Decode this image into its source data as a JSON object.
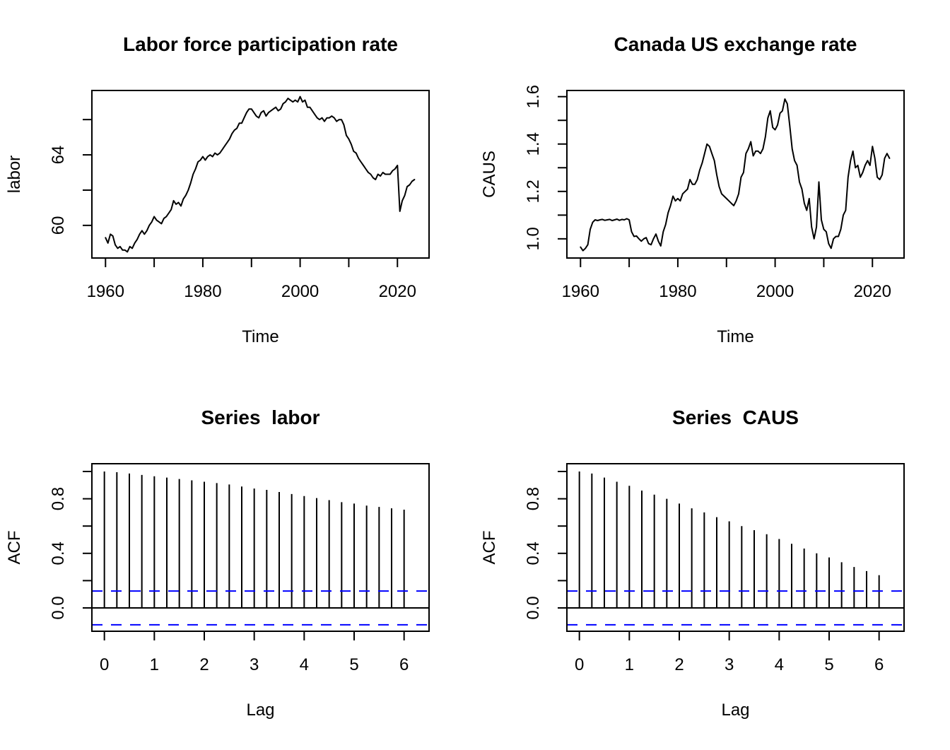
{
  "figure": {
    "background": "#FFFFFF",
    "line_color": "#000000",
    "conf_band_color": "#0000FF",
    "axis_color": "#000000"
  },
  "chart_data": [
    {
      "id": "labor-timeseries",
      "type": "line",
      "title": "Labor force participation rate",
      "xlabel": "Time",
      "ylabel": "labor",
      "grid": false,
      "legend": "none",
      "xlim": [
        1957.2,
        2026.5
      ],
      "ylim": [
        58.15,
        67.65
      ],
      "xticks": [
        1960,
        1970,
        1980,
        1990,
        2000,
        2010,
        2020
      ],
      "xtick_labels": [
        "1960",
        "",
        "1980",
        "",
        "2000",
        "",
        "2020"
      ],
      "yticks": [
        60,
        62,
        64,
        66
      ],
      "ytick_labels": [
        "60",
        "",
        "64",
        ""
      ],
      "x_start": 1960,
      "x_step": 0.5,
      "y": [
        59.3,
        59.0,
        59.5,
        59.4,
        58.9,
        58.7,
        58.8,
        58.6,
        58.6,
        58.5,
        58.8,
        58.7,
        59.0,
        59.2,
        59.5,
        59.7,
        59.5,
        59.7,
        60.0,
        60.2,
        60.5,
        60.3,
        60.2,
        60.1,
        60.4,
        60.5,
        60.7,
        60.9,
        61.4,
        61.2,
        61.3,
        61.1,
        61.5,
        61.7,
        62.0,
        62.4,
        62.9,
        63.2,
        63.6,
        63.7,
        63.9,
        63.7,
        63.9,
        64.0,
        63.9,
        64.1,
        64.0,
        64.1,
        64.3,
        64.5,
        64.7,
        64.9,
        65.2,
        65.4,
        65.5,
        65.8,
        65.8,
        66.1,
        66.4,
        66.6,
        66.6,
        66.4,
        66.2,
        66.1,
        66.4,
        66.5,
        66.2,
        66.4,
        66.5,
        66.6,
        66.7,
        66.5,
        66.6,
        66.9,
        67.0,
        67.2,
        67.1,
        67.0,
        67.1,
        67.0,
        67.3,
        67.0,
        67.1,
        66.7,
        66.7,
        66.5,
        66.3,
        66.1,
        66.0,
        66.1,
        65.9,
        66.1,
        66.1,
        66.2,
        66.1,
        65.9,
        66.0,
        66.0,
        65.7,
        65.1,
        64.9,
        64.6,
        64.2,
        64.1,
        63.8,
        63.6,
        63.4,
        63.2,
        63.0,
        62.9,
        62.7,
        62.6,
        62.9,
        62.8,
        63.0,
        62.9,
        62.9,
        62.9,
        63.1,
        63.2,
        63.4,
        60.8,
        61.4,
        61.7,
        62.2,
        62.3,
        62.5,
        62.6
      ]
    },
    {
      "id": "caus-timeseries",
      "type": "line",
      "title": "Canada US exchange rate",
      "xlabel": "Time",
      "ylabel": "CAUS",
      "grid": false,
      "legend": "none",
      "xlim": [
        1957.2,
        2026.5
      ],
      "ylim": [
        0.919,
        1.626
      ],
      "xticks": [
        1960,
        1970,
        1980,
        1990,
        2000,
        2010,
        2020
      ],
      "xtick_labels": [
        "1960",
        "",
        "1980",
        "",
        "2000",
        "",
        "2020"
      ],
      "yticks": [
        1.0,
        1.1,
        1.2,
        1.3,
        1.4,
        1.5,
        1.6
      ],
      "ytick_labels": [
        "1.0",
        "",
        "1.2",
        "",
        "1.4",
        "",
        "1.6"
      ],
      "x_start": 1960,
      "x_step": 0.5,
      "y": [
        0.965,
        0.95,
        0.96,
        0.975,
        1.04,
        1.07,
        1.08,
        1.077,
        1.08,
        1.082,
        1.078,
        1.08,
        1.082,
        1.077,
        1.08,
        1.083,
        1.078,
        1.082,
        1.08,
        1.085,
        1.08,
        1.03,
        1.01,
        1.012,
        1.0,
        0.99,
        1.0,
        1.005,
        0.98,
        0.975,
        1.0,
        1.02,
        0.99,
        0.97,
        1.03,
        1.06,
        1.11,
        1.14,
        1.18,
        1.16,
        1.17,
        1.16,
        1.19,
        1.2,
        1.21,
        1.25,
        1.23,
        1.23,
        1.25,
        1.29,
        1.32,
        1.36,
        1.4,
        1.39,
        1.36,
        1.33,
        1.27,
        1.22,
        1.19,
        1.18,
        1.17,
        1.16,
        1.15,
        1.14,
        1.16,
        1.19,
        1.26,
        1.28,
        1.36,
        1.38,
        1.41,
        1.35,
        1.37,
        1.37,
        1.36,
        1.38,
        1.43,
        1.51,
        1.54,
        1.47,
        1.46,
        1.48,
        1.53,
        1.54,
        1.59,
        1.57,
        1.48,
        1.38,
        1.33,
        1.31,
        1.24,
        1.21,
        1.15,
        1.12,
        1.17,
        1.05,
        1.0,
        1.05,
        1.24,
        1.08,
        1.04,
        1.03,
        0.98,
        0.96,
        1.0,
        1.01,
        1.01,
        1.04,
        1.1,
        1.12,
        1.26,
        1.33,
        1.37,
        1.3,
        1.31,
        1.26,
        1.28,
        1.31,
        1.33,
        1.31,
        1.39,
        1.34,
        1.26,
        1.25,
        1.27,
        1.34,
        1.36,
        1.34
      ]
    },
    {
      "id": "acf-labor",
      "type": "acf-bar",
      "title": "Series  labor",
      "xlabel": "Lag",
      "ylabel": "ACF",
      "grid": false,
      "legend": "none",
      "xlim": [
        -0.25,
        6.5
      ],
      "ylim": [
        -0.171,
        1.057
      ],
      "xticks": [
        0,
        1,
        2,
        3,
        4,
        5,
        6
      ],
      "xtick_labels": [
        "0",
        "1",
        "2",
        "3",
        "4",
        "5",
        "6"
      ],
      "yticks": [
        0.0,
        0.2,
        0.4,
        0.6,
        0.8,
        1.0
      ],
      "ytick_labels": [
        "0.0",
        "",
        "0.4",
        "",
        "0.8",
        ""
      ],
      "lag_step": 0.25,
      "lags": [
        0,
        0.25,
        0.5,
        0.75,
        1,
        1.25,
        1.5,
        1.75,
        2,
        2.25,
        2.5,
        2.75,
        3,
        3.25,
        3.5,
        3.75,
        4,
        4.25,
        4.5,
        4.75,
        5,
        5.25,
        5.5,
        5.75,
        6
      ],
      "values": [
        1.0,
        0.995,
        0.985,
        0.975,
        0.965,
        0.955,
        0.945,
        0.935,
        0.925,
        0.915,
        0.905,
        0.89,
        0.875,
        0.865,
        0.85,
        0.835,
        0.82,
        0.805,
        0.79,
        0.775,
        0.765,
        0.75,
        0.74,
        0.73,
        0.72
      ],
      "conf_level": 0.124
    },
    {
      "id": "acf-caus",
      "type": "acf-bar",
      "title": "Series  CAUS",
      "xlabel": "Lag",
      "ylabel": "ACF",
      "grid": false,
      "legend": "none",
      "xlim": [
        -0.25,
        6.5
      ],
      "ylim": [
        -0.171,
        1.057
      ],
      "xticks": [
        0,
        1,
        2,
        3,
        4,
        5,
        6
      ],
      "xtick_labels": [
        "0",
        "1",
        "2",
        "3",
        "4",
        "5",
        "6"
      ],
      "yticks": [
        0.0,
        0.2,
        0.4,
        0.6,
        0.8,
        1.0
      ],
      "ytick_labels": [
        "0.0",
        "",
        "0.4",
        "",
        "0.8",
        ""
      ],
      "lag_step": 0.25,
      "lags": [
        0,
        0.25,
        0.5,
        0.75,
        1,
        1.25,
        1.5,
        1.75,
        2,
        2.25,
        2.5,
        2.75,
        3,
        3.25,
        3.5,
        3.75,
        4,
        4.25,
        4.5,
        4.75,
        5,
        5.25,
        5.5,
        5.75,
        6
      ],
      "values": [
        1.0,
        0.985,
        0.955,
        0.925,
        0.895,
        0.86,
        0.83,
        0.8,
        0.765,
        0.73,
        0.7,
        0.665,
        0.635,
        0.6,
        0.57,
        0.54,
        0.505,
        0.47,
        0.435,
        0.4,
        0.37,
        0.335,
        0.3,
        0.27,
        0.24
      ],
      "conf_level": 0.124
    }
  ]
}
